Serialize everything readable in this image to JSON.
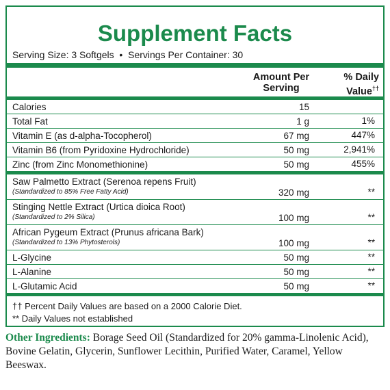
{
  "header": {
    "title": "Supplement Facts",
    "serving_size": "Serving Size: 3 Softgels",
    "separator": "•",
    "servings": "Servings Per Container: 30"
  },
  "columns": {
    "amount": "Amount Per Serving",
    "daily_value": "% Daily Value",
    "daily_value_mark": "††"
  },
  "groups": [
    [
      {
        "name": "Calories",
        "amount": "15"
      },
      {
        "name": "Total Fat",
        "amount": "1 g",
        "daily_value": "1%"
      },
      {
        "name": "Vitamin E (as d-alpha-Tocopherol)",
        "amount": "67 mg",
        "daily_value": "447%"
      },
      {
        "name": "Vitamin B6 (from Pyridoxine Hydrochloride)",
        "amount": "50 mg",
        "daily_value": "2,941%"
      },
      {
        "name": "Zinc (from Zinc Monomethionine)",
        "amount": "50 mg",
        "daily_value": "455%"
      }
    ],
    [
      {
        "name": "Saw Palmetto Extract (Serenoa repens Fruit)",
        "note": "(Standardized to 85% Free Fatty Acid)",
        "amount": "320 mg",
        "daily_value": "**"
      },
      {
        "name": "Stinging Nettle Extract (Urtica dioica Root)",
        "note": "(Standardized to 2% Silica)",
        "amount": "100 mg",
        "daily_value": "**"
      },
      {
        "name": "African Pygeum Extract (Prunus africana Bark)",
        "note": "(Standardized to 13% Phytosterols)",
        "amount": "100 mg",
        "daily_value": "**"
      },
      {
        "name": "L-Glycine",
        "amount": "50 mg",
        "daily_value": "**"
      },
      {
        "name": "L-Alanine",
        "amount": "50 mg",
        "daily_value": "**"
      },
      {
        "name": "L-Glutamic Acid",
        "amount": "50 mg",
        "daily_value": "**"
      }
    ]
  ],
  "footnotes": [
    "†† Percent Daily Values are based on a 2000 Calorie Diet.",
    "** Daily Values not established"
  ],
  "other_ingredients": {
    "label": "Other Ingredients:",
    "text": "Borage Seed Oil (Standardized for 20% gamma-Linolenic Acid), Bovine Gelatin, Glycerin, Sunflower Lecithin, Purified Water, Caramel, Yellow Beeswax."
  }
}
